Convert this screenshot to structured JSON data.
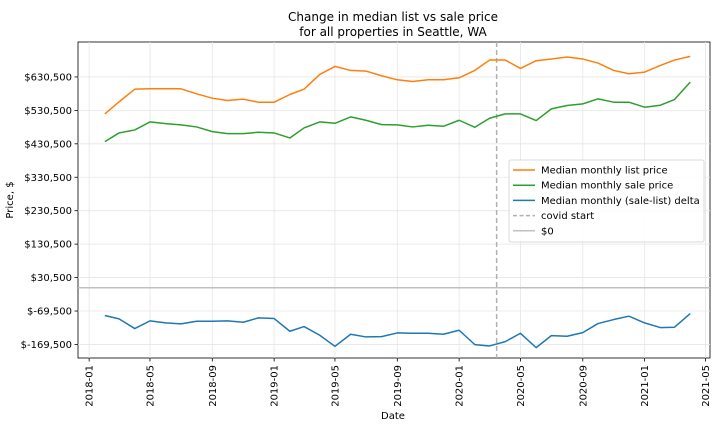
{
  "chart_data": {
    "type": "line",
    "title_lines": [
      "Change in median list vs sale price",
      "for all properties in Seattle, WA"
    ],
    "xlabel": "Date",
    "ylabel": "Price, $",
    "ylim": [
      -210000,
      735000
    ],
    "xlim": [
      "2017-12-10",
      "2021-05-10"
    ],
    "y_ticks": [
      {
        "value": -169500,
        "label": "$-169,500"
      },
      {
        "value": -69500,
        "label": "$-69,500"
      },
      {
        "value": 30500,
        "label": "$30,500"
      },
      {
        "value": 130500,
        "label": "$130,500"
      },
      {
        "value": 230500,
        "label": "$230,500"
      },
      {
        "value": 330500,
        "label": "$330,500"
      },
      {
        "value": 430500,
        "label": "$430,500"
      },
      {
        "value": 530500,
        "label": "$530,500"
      },
      {
        "value": 630500,
        "label": "$630,500"
      }
    ],
    "x_ticks": [
      {
        "value": "2018-01-01",
        "label": "2018-01"
      },
      {
        "value": "2018-05-01",
        "label": "2018-05"
      },
      {
        "value": "2018-09-01",
        "label": "2018-09"
      },
      {
        "value": "2019-01-01",
        "label": "2019-01"
      },
      {
        "value": "2019-05-01",
        "label": "2019-05"
      },
      {
        "value": "2019-09-01",
        "label": "2019-09"
      },
      {
        "value": "2020-01-01",
        "label": "2020-01"
      },
      {
        "value": "2020-05-01",
        "label": "2020-05"
      },
      {
        "value": "2020-09-01",
        "label": "2020-09"
      },
      {
        "value": "2021-01-01",
        "label": "2021-01"
      },
      {
        "value": "2021-05-01",
        "label": "2021-05"
      }
    ],
    "x": [
      "2018-02-01",
      "2018-03-01",
      "2018-04-01",
      "2018-05-01",
      "2018-06-01",
      "2018-07-01",
      "2018-08-01",
      "2018-09-01",
      "2018-10-01",
      "2018-11-01",
      "2018-12-01",
      "2019-01-01",
      "2019-02-01",
      "2019-03-01",
      "2019-04-01",
      "2019-05-01",
      "2019-06-01",
      "2019-07-01",
      "2019-08-01",
      "2019-09-01",
      "2019-10-01",
      "2019-11-01",
      "2019-12-01",
      "2020-01-01",
      "2020-02-01",
      "2020-03-01",
      "2020-04-01",
      "2020-05-01",
      "2020-06-01",
      "2020-07-01",
      "2020-08-01",
      "2020-09-01",
      "2020-10-01",
      "2020-11-01",
      "2020-12-01",
      "2021-01-01",
      "2021-02-01",
      "2021-03-01",
      "2021-04-01"
    ],
    "series": [
      {
        "name": "Median monthly list price",
        "color": "#ff7f0e",
        "values": [
          520000,
          556000,
          594000,
          595000,
          595000,
          595000,
          580000,
          567000,
          560000,
          564000,
          555000,
          555000,
          578000,
          594000,
          638000,
          662000,
          650000,
          648000,
          634000,
          622000,
          617000,
          622000,
          622000,
          628000,
          650000,
          681000,
          681000,
          656000,
          679000,
          684000,
          690000,
          684000,
          672000,
          650000,
          640000,
          645000,
          665000,
          681000,
          692000
        ]
      },
      {
        "name": "Median monthly sale price",
        "color": "#2ca02c",
        "values": [
          437000,
          463000,
          472000,
          496000,
          491000,
          487000,
          481000,
          467000,
          461000,
          461000,
          465000,
          463000,
          448000,
          478000,
          496000,
          492000,
          511000,
          501000,
          488000,
          487000,
          481000,
          486000,
          483000,
          501000,
          480000,
          507000,
          520000,
          520000,
          500000,
          535000,
          545000,
          550000,
          565000,
          555000,
          555000,
          540000,
          546000,
          563000,
          615000
        ]
      },
      {
        "name": "Median monthly (sale-list) delta",
        "color": "#1f77b4",
        "values": [
          -83000,
          -93000,
          -122000,
          -99000,
          -105000,
          -108000,
          -100000,
          -100000,
          -99000,
          -103000,
          -90000,
          -92000,
          -130000,
          -116000,
          -142000,
          -175000,
          -139000,
          -147000,
          -146000,
          -135000,
          -136000,
          -136000,
          -139000,
          -127000,
          -170000,
          -174000,
          -161000,
          -136000,
          -179000,
          -143000,
          -145000,
          -134000,
          -107000,
          -95000,
          -85000,
          -105000,
          -119000,
          -118000,
          -77000
        ]
      }
    ],
    "vlines": [
      {
        "name": "covid start",
        "x": "2020-03-15",
        "color": "#b0b0b0",
        "style": "dashed"
      }
    ],
    "hlines": [
      {
        "name": "$0",
        "y": 0,
        "color": "#c0c0c0",
        "style": "solid"
      }
    ],
    "legend": {
      "position": "center-right",
      "entries": [
        {
          "label": "Median monthly list price",
          "color": "#ff7f0e",
          "style": "solid"
        },
        {
          "label": "Median monthly sale price",
          "color": "#2ca02c",
          "style": "solid"
        },
        {
          "label": "Median monthly (sale-list) delta",
          "color": "#1f77b4",
          "style": "solid"
        },
        {
          "label": "covid start",
          "color": "#b0b0b0",
          "style": "dashed"
        },
        {
          "label": "$0",
          "color": "#c0c0c0",
          "style": "solid"
        }
      ]
    },
    "grid": true
  }
}
